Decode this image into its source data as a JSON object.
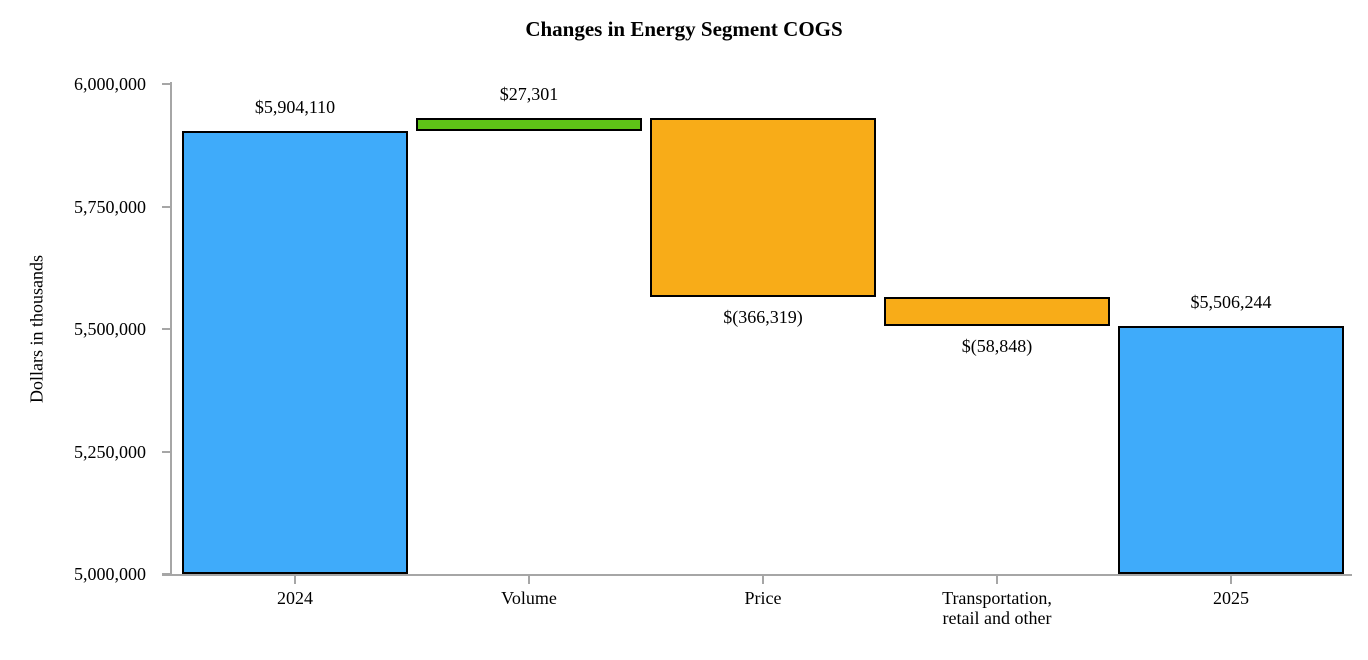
{
  "title": "Changes in Energy Segment COGS",
  "y_axis": {
    "label": "Dollars in thousands",
    "tick_labels": [
      "6,000,000",
      "5,750,000",
      "5,500,000",
      "5,250,000",
      "5,000,000"
    ],
    "tick_values": [
      6000000,
      5750000,
      5500000,
      5250000,
      5000000
    ]
  },
  "chart_data": {
    "type": "bar",
    "subtype": "waterfall",
    "title": "Changes in Energy Segment COGS",
    "ylabel": "Dollars in thousands",
    "xlabel": "",
    "ylim": [
      5000000,
      6000000
    ],
    "ytick_step": 250000,
    "grid": false,
    "legend": "none",
    "categories": [
      "2024",
      "Volume",
      "Price",
      "Transportation,\nretail and other",
      "2025"
    ],
    "bars": [
      {
        "label": "2024",
        "kind": "total",
        "value": 5904110,
        "display": "$5,904,110",
        "label_position": "above",
        "color_key": "total"
      },
      {
        "label": "Volume",
        "kind": "increase",
        "value": 27301,
        "display": "$27,301",
        "label_position": "above",
        "color_key": "increase"
      },
      {
        "label": "Price",
        "kind": "decrease",
        "value": -366319,
        "display": "$(366,319)",
        "label_position": "below",
        "color_key": "decrease"
      },
      {
        "label": "Transportation,\nretail and other",
        "kind": "decrease",
        "value": -58848,
        "display": "$(58,848)",
        "label_position": "below",
        "color_key": "decrease"
      },
      {
        "label": "2025",
        "kind": "total",
        "value": 5506244,
        "display": "$5,506,244",
        "label_position": "above",
        "color_key": "total"
      }
    ],
    "colors": {
      "total": "#3fabfa",
      "increase": "#5ec417",
      "decrease": "#f8ac18",
      "bar_border": "#000000",
      "axis": "#a6a6a6",
      "text": "#000000",
      "background": "#ffffff"
    }
  }
}
